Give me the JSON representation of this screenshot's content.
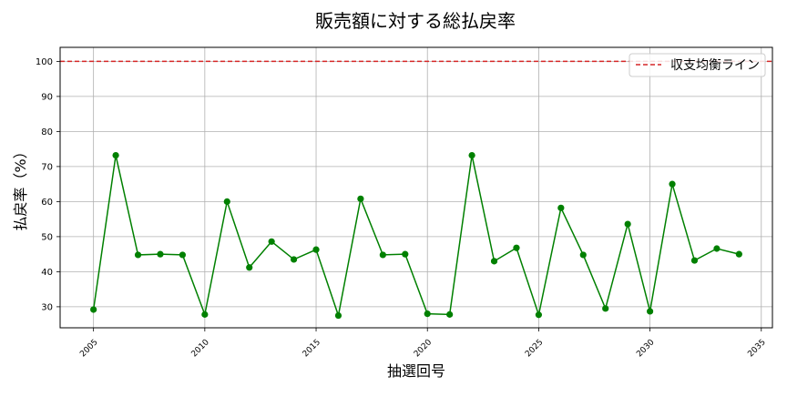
{
  "chart_data": {
    "type": "line",
    "title": "販売額に対する総払戻率",
    "xlabel": "抽選回号",
    "ylabel": "払戻率（%）",
    "xlim": [
      2003.5,
      2035.5
    ],
    "ylim": [
      24,
      104
    ],
    "xticks": [
      2005,
      2010,
      2015,
      2020,
      2025,
      2030,
      2035
    ],
    "yticks": [
      30,
      40,
      50,
      60,
      70,
      80,
      90,
      100
    ],
    "grid": true,
    "legend_position": "top-right",
    "series": [
      {
        "name": "",
        "color": "#008000",
        "marker": "circle",
        "x": [
          2005,
          2006,
          2007,
          2008,
          2009,
          2010,
          2011,
          2012,
          2013,
          2014,
          2015,
          2016,
          2017,
          2018,
          2019,
          2020,
          2021,
          2022,
          2023,
          2024,
          2025,
          2026,
          2027,
          2028,
          2029,
          2030,
          2031,
          2032,
          2033,
          2034
        ],
        "y": [
          29.2,
          73.2,
          44.8,
          45.0,
          44.8,
          27.8,
          60.0,
          41.2,
          48.6,
          43.5,
          46.3,
          27.5,
          60.8,
          44.8,
          45.0,
          28.0,
          27.8,
          73.2,
          43.0,
          46.8,
          27.7,
          58.2,
          44.8,
          29.5,
          53.6,
          28.7,
          65.0,
          43.2,
          46.6,
          45.0
        ]
      }
    ],
    "reference_line": {
      "name": "収支均衡ライン",
      "y": 100,
      "color": "#d62728",
      "style": "dashed"
    }
  }
}
